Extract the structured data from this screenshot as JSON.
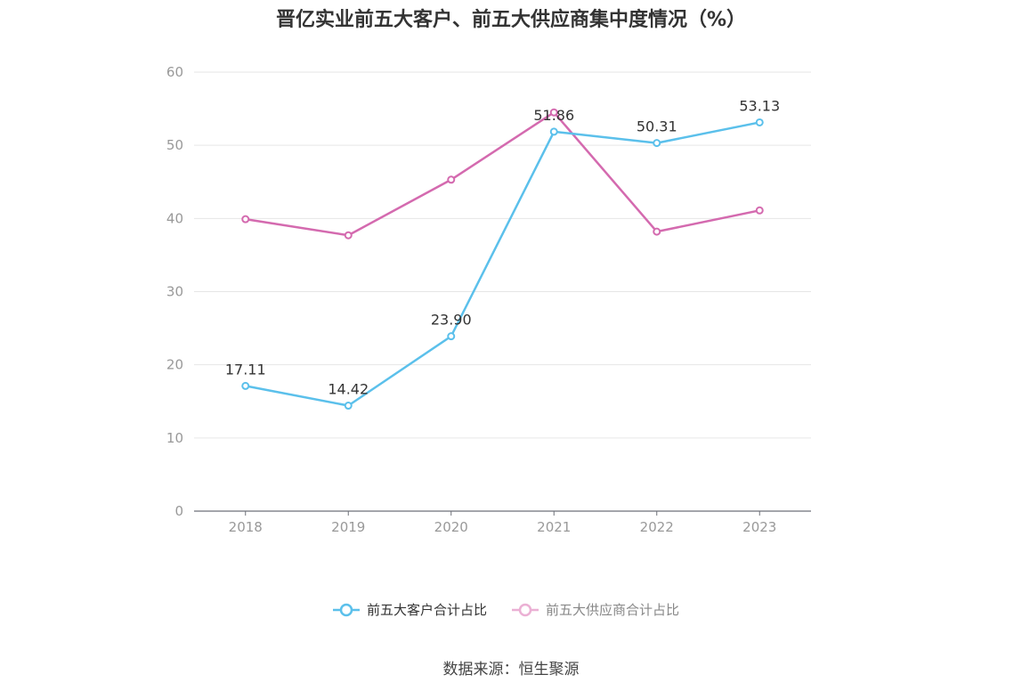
{
  "chart_data": {
    "type": "line",
    "title": "晋亿实业前五大客户、前五大供应商集中度情况（%）",
    "categories": [
      "2018",
      "2019",
      "2020",
      "2021",
      "2022",
      "2023"
    ],
    "ylim": [
      0,
      60
    ],
    "yticks": [
      0,
      10,
      20,
      30,
      40,
      50,
      60
    ],
    "grid": true,
    "legend_position": "bottom-center",
    "series": [
      {
        "name": "前五大客户合计占比",
        "values": [
          17.11,
          14.42,
          23.9,
          51.86,
          50.31,
          53.13
        ],
        "labels": [
          "17.11",
          "14.42",
          "23.90",
          "51.86",
          "50.31",
          "53.13"
        ],
        "color": "#5bc0eb"
      },
      {
        "name": "前五大供应商合计占比",
        "values": [
          39.9,
          37.7,
          45.3,
          54.5,
          38.2,
          41.1
        ],
        "labels": [],
        "color": "#d46aaf"
      }
    ]
  },
  "source": "数据来源：恒生聚源"
}
